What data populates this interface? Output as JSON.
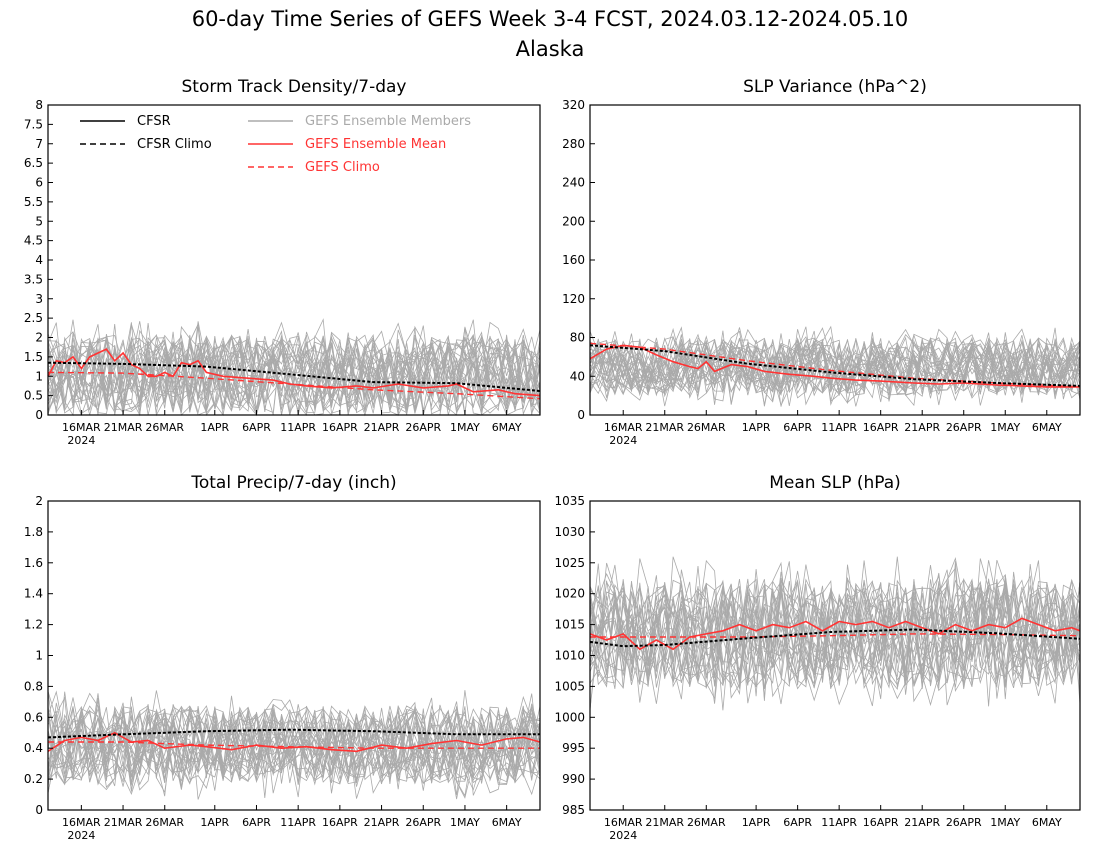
{
  "title_line1": "60-day Time Series of GEFS Week 3-4 FCST, 2024.03.12-2024.05.10",
  "title_line2": "Alaska",
  "legend": {
    "cfsr": "CFSR",
    "cfsr_climo": "CFSR Climo",
    "gefs_members": "GEFS Ensemble Members",
    "gefs_mean": "GEFS Ensemble Mean",
    "gefs_climo": "GEFS Climo"
  },
  "colors": {
    "cfsr": "#000000",
    "gefs_mean": "#ff3333",
    "gefs_climo": "#ff3333",
    "members": "#aaaaaa"
  },
  "x_tick_labels": [
    "16MAR",
    "21MAR",
    "26MAR",
    "1APR",
    "6APR",
    "11APR",
    "16APR",
    "21APR",
    "26APR",
    "1MAY",
    "6MAY"
  ],
  "x_year_label": "2024",
  "chart_data": [
    {
      "type": "line",
      "title": "Storm Track Density/7-day",
      "ylim": [
        0,
        8
      ],
      "yticks": [
        0,
        0.5,
        1,
        1.5,
        2,
        2.5,
        3,
        3.5,
        4,
        4.5,
        5,
        5.5,
        6,
        6.5,
        7,
        7.5,
        8
      ],
      "ytick_labels": [
        "0",
        "0.5",
        "1",
        "1.5",
        "2",
        "2.5",
        "3",
        "3.5",
        "4",
        "4.5",
        "5",
        "5.5",
        "6",
        "6.5",
        "7",
        "7.5",
        "8"
      ],
      "n_days": 60,
      "cfsr_climo": [
        [
          1,
          1.35
        ],
        [
          10,
          1.32
        ],
        [
          20,
          1.25
        ],
        [
          30,
          1.05
        ],
        [
          40,
          0.85
        ],
        [
          50,
          0.82
        ],
        [
          60,
          0.62
        ]
      ],
      "gefs_climo": [
        [
          1,
          1.1
        ],
        [
          10,
          1.08
        ],
        [
          20,
          0.95
        ],
        [
          30,
          0.8
        ],
        [
          40,
          0.65
        ],
        [
          50,
          0.55
        ],
        [
          60,
          0.42
        ]
      ],
      "gefs_mean": [
        [
          1,
          1.0
        ],
        [
          2,
          1.4
        ],
        [
          3,
          1.35
        ],
        [
          4,
          1.5
        ],
        [
          5,
          1.2
        ],
        [
          6,
          1.5
        ],
        [
          7,
          1.6
        ],
        [
          8,
          1.7
        ],
        [
          9,
          1.4
        ],
        [
          10,
          1.6
        ],
        [
          11,
          1.3
        ],
        [
          12,
          1.2
        ],
        [
          13,
          1.0
        ],
        [
          14,
          1.0
        ],
        [
          15,
          1.1
        ],
        [
          16,
          1.0
        ],
        [
          17,
          1.35
        ],
        [
          18,
          1.3
        ],
        [
          19,
          1.4
        ],
        [
          20,
          1.1
        ],
        [
          22,
          1.0
        ],
        [
          25,
          0.95
        ],
        [
          28,
          0.9
        ],
        [
          30,
          0.8
        ],
        [
          32,
          0.75
        ],
        [
          35,
          0.7
        ],
        [
          38,
          0.75
        ],
        [
          40,
          0.7
        ],
        [
          43,
          0.8
        ],
        [
          46,
          0.7
        ],
        [
          49,
          0.75
        ],
        [
          50,
          0.8
        ],
        [
          52,
          0.6
        ],
        [
          55,
          0.65
        ],
        [
          57,
          0.55
        ],
        [
          60,
          0.5
        ]
      ],
      "member_spread": [
        0.2,
        2.6
      ],
      "member_center": 1.05
    },
    {
      "type": "line",
      "title": "SLP Variance (hPa^2)",
      "ylim": [
        0,
        320
      ],
      "yticks": [
        0,
        40,
        80,
        120,
        160,
        200,
        240,
        280,
        320
      ],
      "ytick_labels": [
        "0",
        "40",
        "80",
        "120",
        "160",
        "200",
        "240",
        "280",
        "320"
      ],
      "n_days": 60,
      "cfsr_climo": [
        [
          1,
          72
        ],
        [
          10,
          66
        ],
        [
          20,
          53
        ],
        [
          30,
          44
        ],
        [
          40,
          37
        ],
        [
          50,
          33
        ],
        [
          60,
          30
        ]
      ],
      "gefs_climo": [
        [
          1,
          74
        ],
        [
          10,
          68
        ],
        [
          20,
          56
        ],
        [
          30,
          46
        ],
        [
          40,
          38
        ],
        [
          50,
          33
        ],
        [
          60,
          29
        ]
      ],
      "gefs_mean": [
        [
          1,
          58
        ],
        [
          3,
          68
        ],
        [
          5,
          72
        ],
        [
          7,
          70
        ],
        [
          9,
          62
        ],
        [
          11,
          55
        ],
        [
          13,
          50
        ],
        [
          14,
          48
        ],
        [
          15,
          55
        ],
        [
          16,
          45
        ],
        [
          18,
          52
        ],
        [
          20,
          50
        ],
        [
          22,
          45
        ],
        [
          25,
          42
        ],
        [
          28,
          40
        ],
        [
          30,
          38
        ],
        [
          33,
          36
        ],
        [
          36,
          35
        ],
        [
          40,
          33
        ],
        [
          43,
          32
        ],
        [
          46,
          33
        ],
        [
          50,
          31
        ],
        [
          53,
          30
        ],
        [
          56,
          29
        ],
        [
          60,
          29
        ]
      ],
      "member_spread": [
        20,
        90
      ],
      "member_center": 50
    },
    {
      "type": "line",
      "title": "Total Precip/7-day (inch)",
      "ylim": [
        0,
        2
      ],
      "yticks": [
        0,
        0.2,
        0.4,
        0.6,
        0.8,
        1,
        1.2,
        1.4,
        1.6,
        1.8,
        2
      ],
      "ytick_labels": [
        "0",
        "0.2",
        "0.4",
        "0.6",
        "0.8",
        "1",
        "1.2",
        "1.4",
        "1.6",
        "1.8",
        "2"
      ],
      "n_days": 60,
      "cfsr_climo": [
        [
          1,
          0.47
        ],
        [
          10,
          0.49
        ],
        [
          20,
          0.51
        ],
        [
          30,
          0.52
        ],
        [
          40,
          0.51
        ],
        [
          50,
          0.49
        ],
        [
          60,
          0.49
        ]
      ],
      "gefs_climo": [
        [
          1,
          0.44
        ],
        [
          10,
          0.44
        ],
        [
          20,
          0.42
        ],
        [
          30,
          0.41
        ],
        [
          40,
          0.4
        ],
        [
          50,
          0.4
        ],
        [
          60,
          0.4
        ]
      ],
      "gefs_mean": [
        [
          1,
          0.38
        ],
        [
          3,
          0.45
        ],
        [
          5,
          0.47
        ],
        [
          7,
          0.45
        ],
        [
          9,
          0.5
        ],
        [
          11,
          0.44
        ],
        [
          13,
          0.45
        ],
        [
          15,
          0.4
        ],
        [
          18,
          0.42
        ],
        [
          20,
          0.41
        ],
        [
          23,
          0.39
        ],
        [
          26,
          0.42
        ],
        [
          29,
          0.4
        ],
        [
          32,
          0.41
        ],
        [
          35,
          0.39
        ],
        [
          38,
          0.38
        ],
        [
          41,
          0.42
        ],
        [
          44,
          0.4
        ],
        [
          47,
          0.43
        ],
        [
          50,
          0.45
        ],
        [
          53,
          0.42
        ],
        [
          56,
          0.46
        ],
        [
          58,
          0.47
        ],
        [
          60,
          0.44
        ]
      ],
      "member_spread": [
        0.15,
        0.75
      ],
      "member_center": 0.42
    },
    {
      "type": "line",
      "title": "Mean SLP (hPa)",
      "ylim": [
        985,
        1035
      ],
      "yticks": [
        985,
        990,
        995,
        1000,
        1005,
        1010,
        1015,
        1020,
        1025,
        1030,
        1035
      ],
      "ytick_labels": [
        "985",
        "990",
        "995",
        "1000",
        "1005",
        "1010",
        "1015",
        "1020",
        "1025",
        "1030",
        "1035"
      ],
      "n_days": 60,
      "cfsr_climo": [
        [
          1,
          1012.2
        ],
        [
          5,
          1011.5
        ],
        [
          10,
          1011.7
        ],
        [
          20,
          1012.8
        ],
        [
          30,
          1013.8
        ],
        [
          40,
          1014.2
        ],
        [
          50,
          1013.6
        ],
        [
          60,
          1012.7
        ]
      ],
      "gefs_climo": [
        [
          1,
          1013.0
        ],
        [
          10,
          1013.0
        ],
        [
          20,
          1013.0
        ],
        [
          30,
          1013.2
        ],
        [
          40,
          1013.5
        ],
        [
          50,
          1013.4
        ],
        [
          60,
          1013.2
        ]
      ],
      "gefs_mean": [
        [
          1,
          1013.5
        ],
        [
          3,
          1012.5
        ],
        [
          5,
          1013.5
        ],
        [
          7,
          1011.0
        ],
        [
          9,
          1012.5
        ],
        [
          11,
          1011.0
        ],
        [
          13,
          1013.0
        ],
        [
          15,
          1013.5
        ],
        [
          17,
          1014.0
        ],
        [
          19,
          1015.0
        ],
        [
          21,
          1014.0
        ],
        [
          23,
          1015.0
        ],
        [
          25,
          1014.5
        ],
        [
          27,
          1015.5
        ],
        [
          29,
          1014.0
        ],
        [
          31,
          1015.5
        ],
        [
          33,
          1015.0
        ],
        [
          35,
          1015.5
        ],
        [
          37,
          1014.5
        ],
        [
          39,
          1015.5
        ],
        [
          41,
          1014.5
        ],
        [
          43,
          1013.5
        ],
        [
          45,
          1015.0
        ],
        [
          47,
          1014.0
        ],
        [
          49,
          1015.0
        ],
        [
          51,
          1014.5
        ],
        [
          53,
          1016.0
        ],
        [
          55,
          1015.0
        ],
        [
          57,
          1014.0
        ],
        [
          59,
          1014.5
        ],
        [
          60,
          1014.0
        ]
      ],
      "member_spread": [
        1003,
        1024
      ],
      "member_center": 1013.5
    }
  ]
}
